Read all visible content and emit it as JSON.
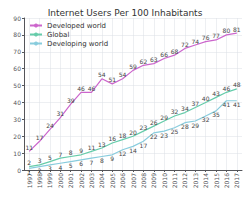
{
  "chart_data": {
    "type": "line",
    "title": "Internet Users Per 100 Inhabitants",
    "x": [
      1997,
      1998,
      1999,
      2000,
      2001,
      2002,
      2003,
      2004,
      2005,
      2006,
      2007,
      2008,
      2009,
      2010,
      2011,
      2012,
      2013,
      2014,
      2015,
      2016,
      2017
    ],
    "series": [
      {
        "name": "Developed world",
        "color": "#cc66cc",
        "values": [
          11,
          17,
          24,
          31,
          39,
          46,
          46,
          54,
          51,
          54,
          59,
          62,
          63,
          66,
          68,
          72,
          74,
          76,
          77,
          80,
          81
        ]
      },
      {
        "name": "Global",
        "color": "#66ccaa",
        "values": [
          2,
          3,
          5,
          7,
          8,
          9,
          11,
          13,
          16,
          18,
          20,
          23,
          26,
          29,
          32,
          34,
          37,
          40,
          43,
          46,
          48
        ]
      },
      {
        "name": "Developing world",
        "color": "#88ccdd",
        "values": [
          1,
          2,
          3,
          4,
          5,
          6,
          7,
          8,
          9,
          12,
          14,
          17,
          22,
          23,
          25,
          28,
          29,
          32,
          35,
          41,
          41
        ]
      }
    ],
    "xlim": [
      1996.5,
      2017.5
    ],
    "xticks": [
      1997,
      1998,
      1999,
      2000,
      2001,
      2002,
      2003,
      2004,
      2005,
      2006,
      2007,
      2008,
      2009,
      2010,
      2011,
      2012,
      2013,
      2014,
      2015,
      2016,
      2017
    ],
    "ylim": [
      0,
      90
    ],
    "yticks": [
      0,
      10,
      20,
      30,
      40,
      50,
      60,
      70,
      80,
      90
    ],
    "grid": true,
    "legend": "upper left",
    "data_labels": true
  }
}
